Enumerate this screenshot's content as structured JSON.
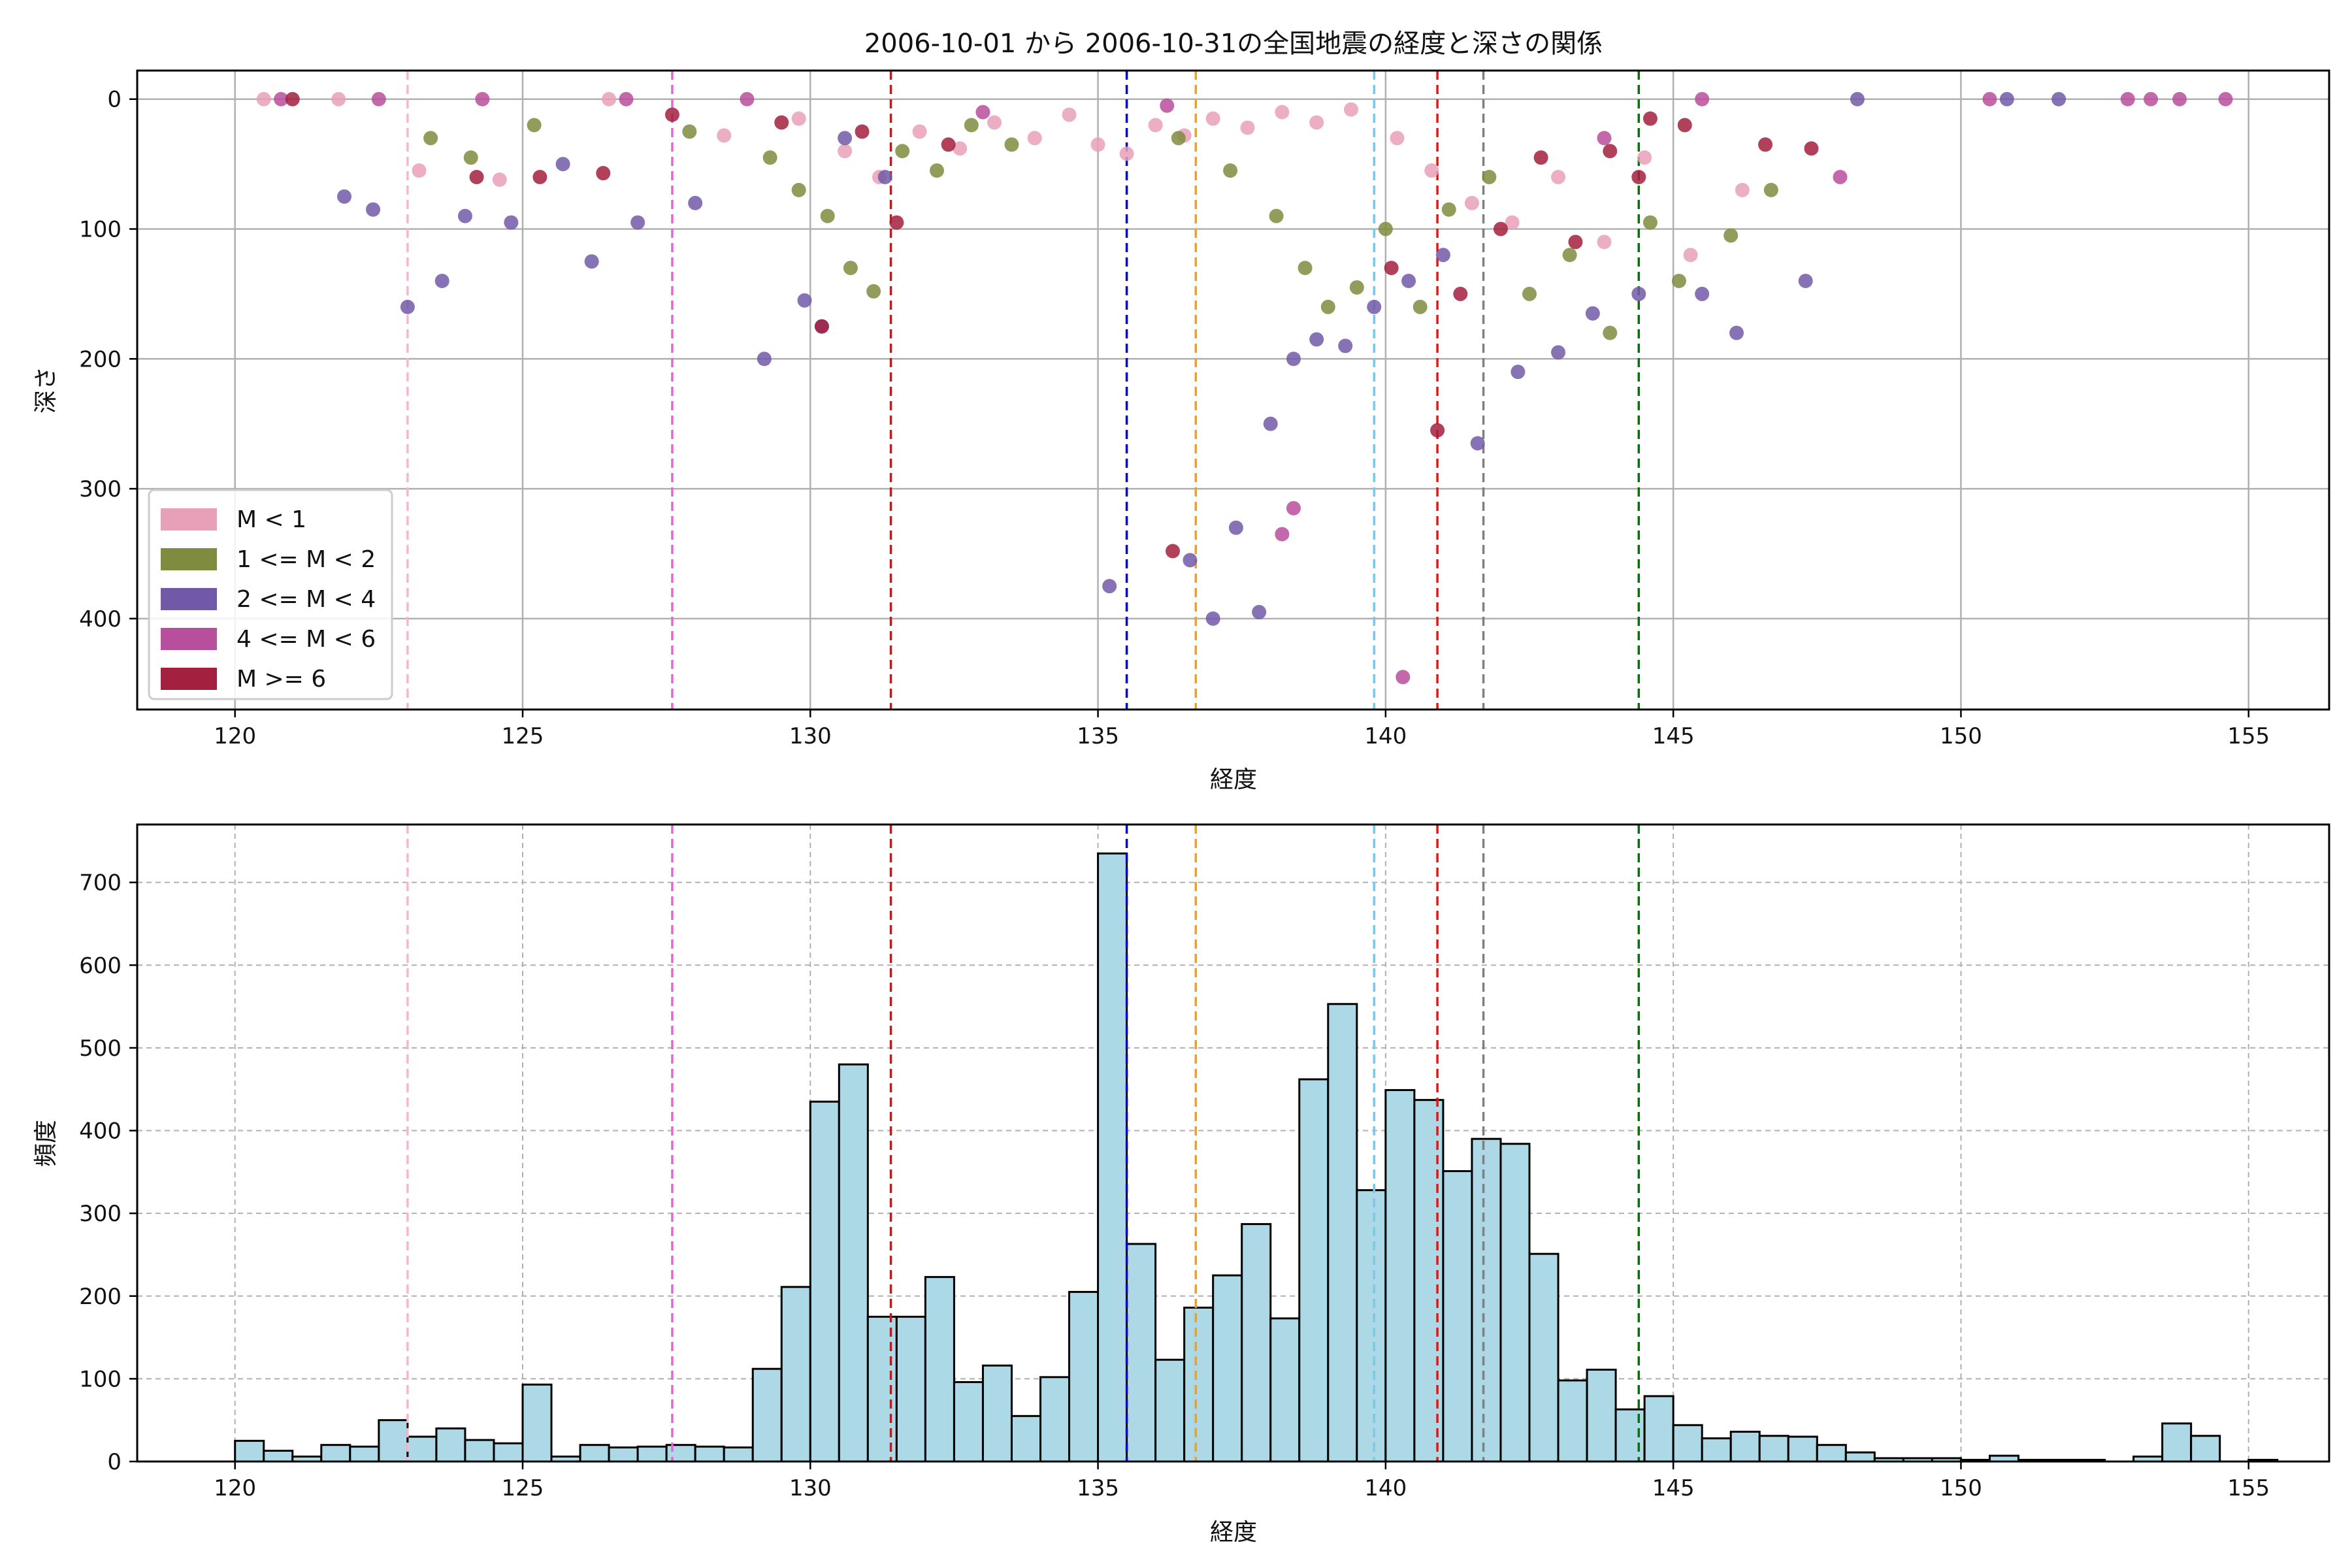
{
  "chart_data": [
    {
      "type": "scatter",
      "title": "2006-10-01 から 2006-10-31の全国地震の経度と深さの関係",
      "xlabel": "経度",
      "ylabel": "深さ",
      "xlim": [
        118.3,
        156.4
      ],
      "ylim": [
        470,
        -22
      ],
      "y_inverted": true,
      "grid": true,
      "x_ticks": [
        120,
        125,
        130,
        135,
        140,
        145,
        150,
        155
      ],
      "y_ticks": [
        0,
        100,
        200,
        300,
        400
      ],
      "legend_position": "lower-left",
      "series": [
        {
          "name": "M < 1",
          "color": "#e8a0b8",
          "points": [
            [
              120.5,
              0
            ],
            [
              121.8,
              0
            ],
            [
              123.2,
              55
            ],
            [
              124.6,
              62
            ],
            [
              126.5,
              0
            ],
            [
              128.5,
              28
            ],
            [
              129.8,
              15
            ],
            [
              130.6,
              40
            ],
            [
              131.2,
              60
            ],
            [
              131.9,
              25
            ],
            [
              132.6,
              38
            ],
            [
              133.2,
              18
            ],
            [
              133.9,
              30
            ],
            [
              134.5,
              12
            ],
            [
              135.0,
              35
            ],
            [
              135.5,
              42
            ],
            [
              136.0,
              20
            ],
            [
              136.5,
              28
            ],
            [
              137.0,
              15
            ],
            [
              137.6,
              22
            ],
            [
              138.2,
              10
            ],
            [
              138.8,
              18
            ],
            [
              139.4,
              8
            ],
            [
              140.2,
              30
            ],
            [
              140.8,
              55
            ],
            [
              141.5,
              80
            ],
            [
              142.2,
              95
            ],
            [
              143.0,
              60
            ],
            [
              143.8,
              110
            ],
            [
              144.5,
              45
            ],
            [
              145.3,
              120
            ],
            [
              146.2,
              70
            ]
          ]
        },
        {
          "name": "1 <= M < 2",
          "color": "#7f8c3f",
          "points": [
            [
              123.4,
              30
            ],
            [
              124.1,
              45
            ],
            [
              125.2,
              20
            ],
            [
              127.9,
              25
            ],
            [
              129.3,
              45
            ],
            [
              129.8,
              70
            ],
            [
              130.3,
              90
            ],
            [
              130.7,
              130
            ],
            [
              131.1,
              148
            ],
            [
              131.6,
              40
            ],
            [
              132.2,
              55
            ],
            [
              132.8,
              20
            ],
            [
              133.5,
              35
            ],
            [
              136.4,
              30
            ],
            [
              137.3,
              55
            ],
            [
              138.1,
              90
            ],
            [
              138.6,
              130
            ],
            [
              139.0,
              160
            ],
            [
              139.5,
              145
            ],
            [
              140.0,
              100
            ],
            [
              140.6,
              160
            ],
            [
              141.1,
              85
            ],
            [
              141.8,
              60
            ],
            [
              142.5,
              150
            ],
            [
              143.2,
              120
            ],
            [
              143.9,
              180
            ],
            [
              144.6,
              95
            ],
            [
              145.1,
              140
            ],
            [
              146.0,
              105
            ],
            [
              146.7,
              70
            ]
          ]
        },
        {
          "name": "2 <= M < 4",
          "color": "#7259a8",
          "points": [
            [
              121.9,
              75
            ],
            [
              122.4,
              85
            ],
            [
              123.0,
              160
            ],
            [
              123.6,
              140
            ],
            [
              124.0,
              90
            ],
            [
              124.8,
              95
            ],
            [
              125.7,
              50
            ],
            [
              126.2,
              125
            ],
            [
              127.0,
              95
            ],
            [
              128.0,
              80
            ],
            [
              129.2,
              200
            ],
            [
              129.9,
              155
            ],
            [
              130.2,
              175
            ],
            [
              130.6,
              30
            ],
            [
              131.3,
              60
            ],
            [
              135.2,
              375
            ],
            [
              136.6,
              355
            ],
            [
              137.0,
              400
            ],
            [
              137.4,
              330
            ],
            [
              137.8,
              395
            ],
            [
              138.0,
              250
            ],
            [
              138.4,
              200
            ],
            [
              138.8,
              185
            ],
            [
              139.3,
              190
            ],
            [
              139.8,
              160
            ],
            [
              140.4,
              140
            ],
            [
              141.0,
              120
            ],
            [
              141.6,
              265
            ],
            [
              142.3,
              210
            ],
            [
              143.0,
              195
            ],
            [
              143.6,
              165
            ],
            [
              144.4,
              150
            ],
            [
              145.5,
              150
            ],
            [
              146.1,
              180
            ],
            [
              147.3,
              140
            ],
            [
              148.2,
              0
            ],
            [
              150.8,
              0
            ],
            [
              151.7,
              0
            ]
          ]
        },
        {
          "name": "4 <= M < 6",
          "color": "#b84f9c",
          "points": [
            [
              120.8,
              0
            ],
            [
              122.5,
              0
            ],
            [
              124.3,
              0
            ],
            [
              126.8,
              0
            ],
            [
              128.9,
              0
            ],
            [
              133.0,
              10
            ],
            [
              136.2,
              5
            ],
            [
              138.2,
              335
            ],
            [
              138.4,
              315
            ],
            [
              140.3,
              445
            ],
            [
              143.8,
              30
            ],
            [
              145.5,
              0
            ],
            [
              147.9,
              60
            ],
            [
              150.5,
              0
            ],
            [
              152.9,
              0
            ],
            [
              153.3,
              0
            ],
            [
              153.8,
              0
            ],
            [
              154.6,
              0
            ]
          ]
        },
        {
          "name": "M >= 6",
          "color": "#a3203e",
          "points": [
            [
              121.0,
              0
            ],
            [
              124.2,
              60
            ],
            [
              125.3,
              60
            ],
            [
              126.4,
              57
            ],
            [
              127.6,
              12
            ],
            [
              129.5,
              18
            ],
            [
              130.2,
              175
            ],
            [
              130.9,
              25
            ],
            [
              131.5,
              95
            ],
            [
              132.4,
              35
            ],
            [
              136.3,
              348
            ],
            [
              140.1,
              130
            ],
            [
              140.9,
              255
            ],
            [
              141.3,
              150
            ],
            [
              142.0,
              100
            ],
            [
              142.7,
              45
            ],
            [
              143.3,
              110
            ],
            [
              143.9,
              40
            ],
            [
              144.4,
              60
            ],
            [
              144.6,
              15
            ],
            [
              145.2,
              20
            ],
            [
              146.6,
              35
            ],
            [
              147.4,
              38
            ]
          ]
        }
      ],
      "reference_lines_x": [
        {
          "x": 123.0,
          "color": "#f5b7d0"
        },
        {
          "x": 127.6,
          "color": "#e266d6"
        },
        {
          "x": 131.4,
          "color": "#b22222"
        },
        {
          "x": 135.5,
          "color": "#0000ee"
        },
        {
          "x": 136.7,
          "color": "#f0a020"
        },
        {
          "x": 139.8,
          "color": "#7ec8e3"
        },
        {
          "x": 140.9,
          "color": "#ee1111"
        },
        {
          "x": 141.7,
          "color": "#808080"
        },
        {
          "x": 144.4,
          "color": "#007700"
        }
      ]
    },
    {
      "type": "bar",
      "title": "",
      "xlabel": "経度",
      "ylabel": "頻度",
      "xlim": [
        118.3,
        156.4
      ],
      "ylim": [
        0,
        770
      ],
      "grid": true,
      "x_ticks": [
        120,
        125,
        130,
        135,
        140,
        145,
        150,
        155
      ],
      "y_ticks": [
        0,
        100,
        200,
        300,
        400,
        500,
        600,
        700
      ],
      "bar_color": "#add8e6",
      "bin_start": 120.0,
      "bin_width": 0.5,
      "values": [
        25,
        13,
        6,
        20,
        18,
        50,
        30,
        40,
        26,
        22,
        93,
        6,
        20,
        17,
        18,
        20,
        18,
        17,
        112,
        211,
        435,
        480,
        175,
        175,
        223,
        96,
        116,
        55,
        102,
        205,
        735,
        263,
        123,
        186,
        225,
        287,
        173,
        462,
        553,
        328,
        449,
        437,
        351,
        390,
        384,
        251,
        98,
        111,
        63,
        79,
        44,
        28,
        36,
        31,
        30,
        20,
        11,
        4,
        4,
        4,
        2,
        7,
        2,
        2,
        2,
        0,
        6,
        46,
        31,
        0,
        2
      ],
      "reference_lines_x": [
        {
          "x": 123.0,
          "color": "#f5b7d0"
        },
        {
          "x": 127.6,
          "color": "#e266d6"
        },
        {
          "x": 131.4,
          "color": "#b22222"
        },
        {
          "x": 135.5,
          "color": "#0000ee"
        },
        {
          "x": 136.7,
          "color": "#f0a020"
        },
        {
          "x": 139.8,
          "color": "#7ec8e3"
        },
        {
          "x": 140.9,
          "color": "#ee1111"
        },
        {
          "x": 141.7,
          "color": "#808080"
        },
        {
          "x": 144.4,
          "color": "#007700"
        }
      ]
    }
  ]
}
